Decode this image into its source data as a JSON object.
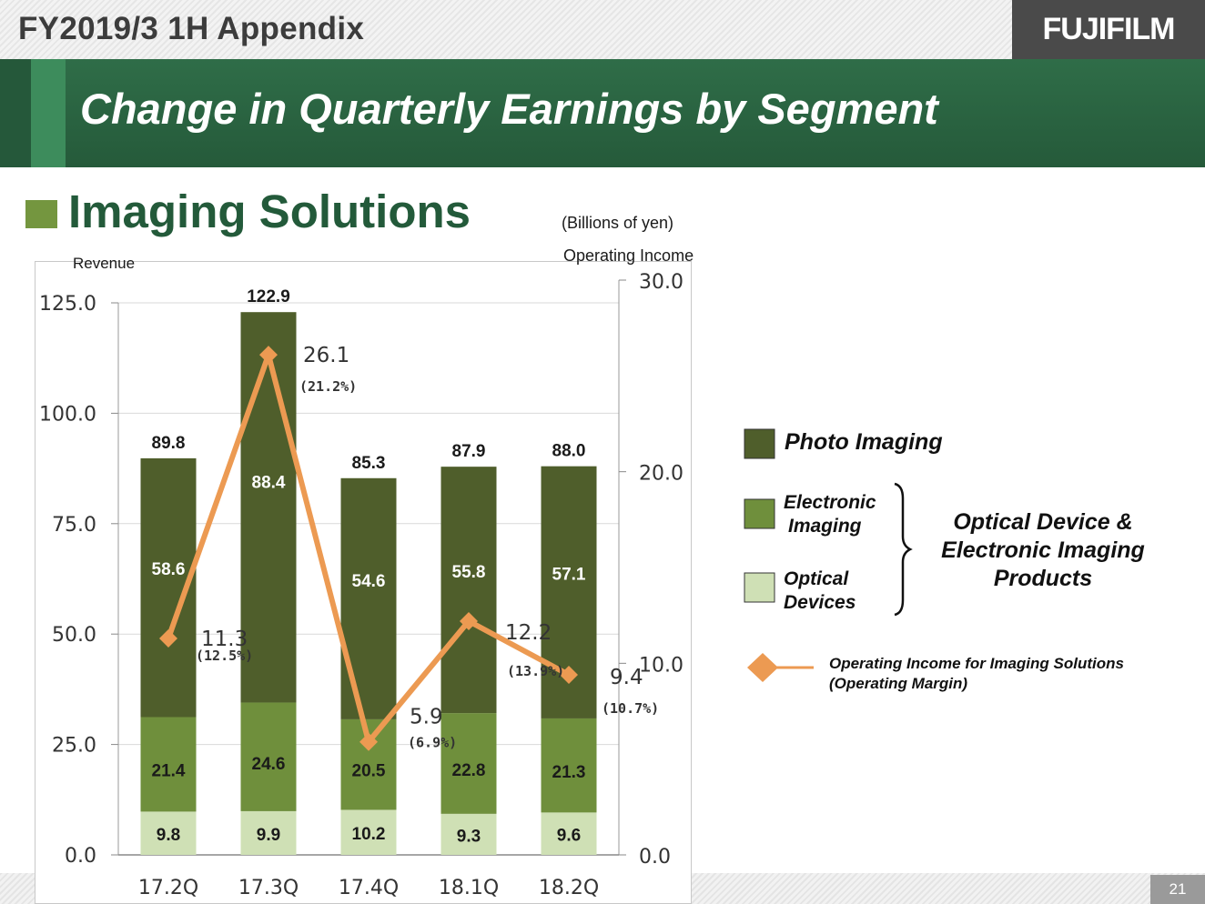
{
  "header": {
    "title": "FY2019/3 1H  Appendix",
    "logo": "FUJIFILM"
  },
  "banner": {
    "title": "Change in Quarterly Earnings by Segment"
  },
  "segment": {
    "title": "Imaging Solutions"
  },
  "unit": "(Billions of yen)",
  "page_number": "21",
  "colors": {
    "photo": "#4f5e2b",
    "electronic": "#6f8f3c",
    "optical": "#cfe0b5",
    "line": "#ec9a52",
    "brand_green": "#235a3a"
  },
  "chart_data": {
    "type": "bar",
    "stacked": true,
    "categories": [
      "17.2Q",
      "17.3Q",
      "17.4Q",
      "18.1Q",
      "18.2Q"
    ],
    "left_axis": {
      "label": "Revenue",
      "ylim": [
        0,
        125
      ],
      "ticks": [
        "0.0",
        "25.0",
        "50.0",
        "75.0",
        "100.0",
        "125.0"
      ]
    },
    "right_axis": {
      "label": "Operating Income",
      "ylim": [
        0,
        30
      ],
      "ticks": [
        "0.0",
        "10.0",
        "20.0",
        "30.0"
      ]
    },
    "totals": [
      "89.8",
      "122.9",
      "85.3",
      "87.9",
      "88.0"
    ],
    "series": [
      {
        "name": "Optical Devices",
        "values": [
          9.8,
          9.9,
          10.2,
          9.3,
          9.6
        ],
        "labels": [
          "9.8",
          "9.9",
          "10.2",
          "9.3",
          "9.6"
        ]
      },
      {
        "name": "Electronic Imaging",
        "values": [
          21.4,
          24.6,
          20.5,
          22.8,
          21.3
        ],
        "labels": [
          "21.4",
          "24.6",
          "20.5",
          "22.8",
          "21.3"
        ]
      },
      {
        "name": "Photo Imaging",
        "values": [
          58.6,
          88.4,
          54.6,
          55.8,
          57.1
        ],
        "labels": [
          "58.6",
          "88.4",
          "54.6",
          "55.8",
          "57.1"
        ]
      }
    ],
    "line": {
      "name": "Operating Income for Imaging Solutions (Operating Margin)",
      "values": [
        11.3,
        26.1,
        5.9,
        12.2,
        9.4
      ],
      "labels": [
        "11.3",
        "26.1",
        "5.9",
        "12.2",
        "9.4"
      ],
      "margins": [
        "(12.5%)",
        "(21.2%)",
        "(6.9%)",
        "(13.9%)",
        "(10.7%)"
      ]
    },
    "legend": {
      "photo": "Photo Imaging",
      "electronic": [
        "Electronic",
        "Imaging"
      ],
      "optical": [
        "Optical",
        "Devices"
      ],
      "group": [
        "Optical Device &",
        "Electronic Imaging",
        "Products"
      ],
      "line": [
        "Operating Income for Imaging Solutions",
        "(Operating Margin)"
      ]
    }
  }
}
